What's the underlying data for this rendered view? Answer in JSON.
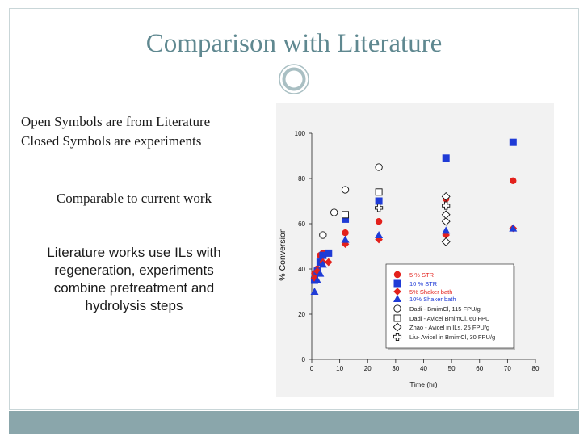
{
  "slide": {
    "title": "Comparison with Literature",
    "line1": "Open Symbols are from Literature",
    "line2": "Closed Symbols are experiments",
    "comparable": "Comparable to current work",
    "lit_lines": [
      "Literature works use ILs with",
      "regeneration, experiments",
      "combine pretreatment and",
      "hydrolysis steps"
    ],
    "colors": {
      "title": "#5f8890",
      "frame": "#c9d6d8",
      "footer": "#8aa6ab"
    }
  },
  "chart_data": {
    "type": "scatter",
    "title": "",
    "xlabel": "Time (hr)",
    "ylabel": "% Conversion",
    "xlim": [
      0,
      80
    ],
    "ylim": [
      0,
      100
    ],
    "xticks": [
      0,
      10,
      20,
      30,
      40,
      50,
      60,
      70,
      80
    ],
    "yticks": [
      0,
      20,
      40,
      60,
      80,
      100
    ],
    "grid": false,
    "legend_position": "lower-right",
    "series": [
      {
        "name": "5 % STR",
        "marker": "circle",
        "filled": true,
        "color": "#e3211c",
        "label_color": "#e3211c",
        "points": [
          [
            1,
            38
          ],
          [
            2,
            40
          ],
          [
            3,
            46
          ],
          [
            4,
            47
          ],
          [
            12,
            56
          ],
          [
            24,
            61
          ],
          [
            48,
            71
          ],
          [
            72,
            79
          ]
        ]
      },
      {
        "name": "10 % STR",
        "marker": "square",
        "filled": true,
        "color": "#1f3bd6",
        "label_color": "#1f3bd6",
        "points": [
          [
            1,
            35
          ],
          [
            2,
            39
          ],
          [
            3,
            43
          ],
          [
            4,
            46
          ],
          [
            6,
            47
          ],
          [
            12,
            62
          ],
          [
            24,
            70
          ],
          [
            48,
            89
          ],
          [
            72,
            96
          ]
        ]
      },
      {
        "name": "5% Shaker bath",
        "marker": "diamond",
        "filled": true,
        "color": "#e3211c",
        "label_color": "#e3211c",
        "points": [
          [
            1,
            36
          ],
          [
            2,
            39
          ],
          [
            4,
            43
          ],
          [
            6,
            43
          ],
          [
            12,
            51
          ],
          [
            24,
            53
          ],
          [
            48,
            55
          ],
          [
            72,
            58
          ]
        ]
      },
      {
        "name": "10% Shaker bath",
        "marker": "triangle",
        "filled": true,
        "color": "#1f3bd6",
        "label_color": "#1f3bd6",
        "points": [
          [
            1,
            30
          ],
          [
            2,
            35
          ],
          [
            3,
            38
          ],
          [
            4,
            42
          ],
          [
            12,
            53
          ],
          [
            24,
            55
          ],
          [
            48,
            57
          ],
          [
            72,
            58
          ]
        ]
      },
      {
        "name": "Dadi - BmimCl, 115 FPU/g",
        "marker": "circle",
        "filled": false,
        "color": "#111111",
        "label_color": "#222222",
        "points": [
          [
            4,
            55
          ],
          [
            8,
            65
          ],
          [
            12,
            75
          ],
          [
            24,
            85
          ]
        ]
      },
      {
        "name": "Dadi - Avicel BmimCl, 60 FPU",
        "marker": "square",
        "filled": false,
        "color": "#111111",
        "label_color": "#222222",
        "points": [
          [
            12,
            64
          ],
          [
            24,
            74
          ]
        ]
      },
      {
        "name": "Zhao - Avicel in ILs, 25 FPU/g",
        "marker": "diamond",
        "filled": false,
        "color": "#111111",
        "label_color": "#222222",
        "points": [
          [
            48,
            52
          ],
          [
            48,
            61
          ],
          [
            48,
            64
          ],
          [
            48,
            72
          ]
        ]
      },
      {
        "name": "Liu- Avicel in BmimCl, 30 FPU/g",
        "marker": "cross",
        "filled": false,
        "color": "#111111",
        "label_color": "#222222",
        "points": [
          [
            24,
            67
          ],
          [
            48,
            68
          ]
        ]
      }
    ]
  }
}
